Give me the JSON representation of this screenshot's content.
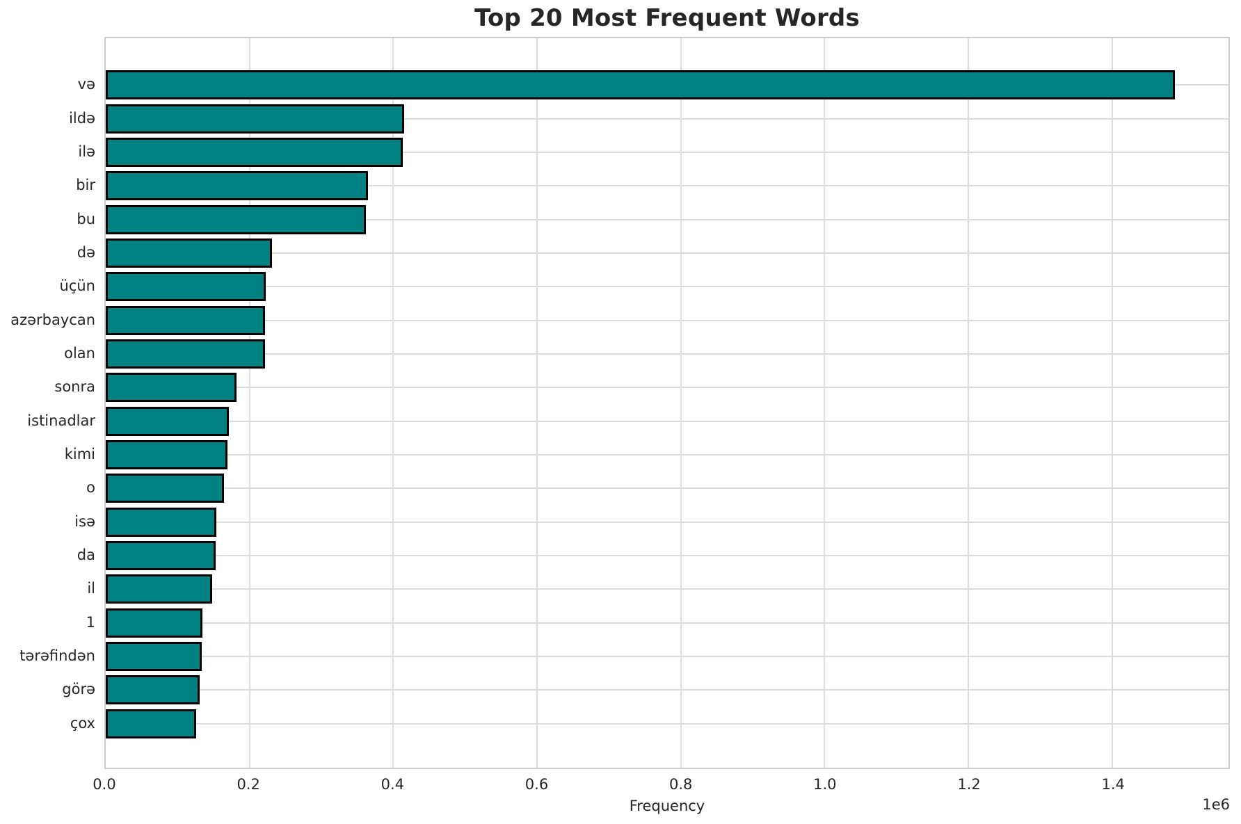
{
  "chart_data": {
    "type": "bar",
    "orientation": "horizontal",
    "title": "Top 20 Most Frequent Words",
    "xlabel": "Frequency",
    "ylabel": "",
    "categories": [
      "və",
      "ildə",
      "ilə",
      "bir",
      "bu",
      "də",
      "üçün",
      "azərbaycan",
      "olan",
      "sonra",
      "istinadlar",
      "kimi",
      "o",
      "isə",
      "da",
      "il",
      "1",
      "tərəfindən",
      "görə",
      "çox"
    ],
    "values": [
      1487000,
      415000,
      413000,
      365000,
      362000,
      231000,
      223000,
      222000,
      222000,
      182000,
      171000,
      169000,
      165000,
      154000,
      153000,
      148000,
      135000,
      134000,
      131000,
      126000
    ],
    "xlim": [
      0,
      1562000
    ],
    "x_ticks": [
      0,
      200000,
      400000,
      600000,
      800000,
      1000000,
      1200000,
      1400000
    ],
    "x_tick_labels": [
      "0.0",
      "0.2",
      "0.4",
      "0.6",
      "0.8",
      "1.0",
      "1.2",
      "1.4"
    ],
    "offset_text": "1e6",
    "grid": true,
    "legend_position": "none",
    "colors": {
      "bar_fill": "#008080",
      "bar_edge": "#000000",
      "grid": "#dcdcdc",
      "spine": "#cccccc",
      "text": "#262626",
      "background": "#ffffff"
    }
  }
}
